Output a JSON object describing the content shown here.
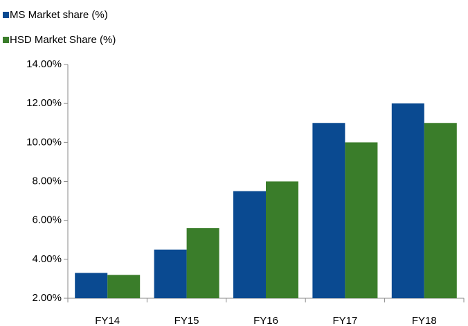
{
  "chart_data": {
    "type": "bar",
    "categories": [
      "FY14",
      "FY15",
      "FY16",
      "FY17",
      "FY18"
    ],
    "series": [
      {
        "name": "MS Market share (%)",
        "color": "#0a4a91",
        "values": [
          3.3,
          4.5,
          7.5,
          11,
          12
        ]
      },
      {
        "name": "HSD Market Share (%)",
        "color": "#3a7d2a",
        "values": [
          3.2,
          5.6,
          8,
          10,
          11
        ]
      }
    ],
    "ylim": [
      2,
      14
    ],
    "yticks": [
      {
        "value": 2,
        "label": "2.00%"
      },
      {
        "value": 4,
        "label": "4.00%"
      },
      {
        "value": 6,
        "label": "6.00%"
      },
      {
        "value": 8,
        "label": "8.00%"
      },
      {
        "value": 10,
        "label": "10.00%"
      },
      {
        "value": 12,
        "label": "12.00%"
      },
      {
        "value": 14,
        "label": "14.00%"
      }
    ],
    "grid": false,
    "legend": "top-left"
  }
}
